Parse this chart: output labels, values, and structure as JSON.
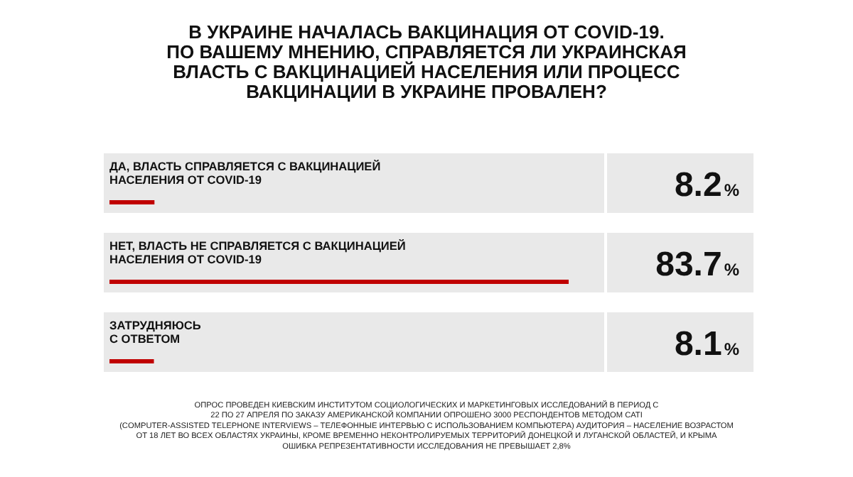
{
  "chart_data": {
    "type": "bar",
    "orientation": "horizontal",
    "title": "В УКРАИНЕ НАЧАЛАСЬ ВАКЦИНАЦИЯ ОТ COVID-19.\nПО ВАШЕМУ МНЕНИЮ, СПРАВЛЯЕТСЯ ЛИ УКРАИНСКАЯ\nВЛАСТЬ С ВАКЦИНАЦИЕЙ НАСЕЛЕНИЯ ИЛИ ПРОЦЕСС\nВАКЦИНАЦИИ В УКРАИНЕ ПРОВАЛЕН?",
    "categories": [
      "ДА, ВЛАСТЬ СПРАВЛЯЕТСЯ С ВАКЦИНАЦИЕЙ\nНАСЕЛЕНИЯ ОТ COVID-19",
      "НЕТ, ВЛАСТЬ НЕ СПРАВЛЯЕТСЯ С ВАКЦИНАЦИЕЙ\nНАСЕЛЕНИЯ ОТ COVID-19",
      "ЗАТРУДНЯЮСЬ\nС ОТВЕТОМ"
    ],
    "values": [
      8.2,
      83.7,
      8.1
    ],
    "value_labels": [
      "8.2%",
      "83.7%",
      "8.1%"
    ],
    "color": "#c00000",
    "annotations": [
      "ОПРОС ПРОВЕДЕН КИЕВСКИМ ИНСТИТУТОМ СОЦИОЛОГИЧЕСКИХ И МАРКЕТИНГОВЫХ ИССЛЕДОВАНИЙ В ПЕРИОД С",
      "22 ПО 27 АПРЕЛЯ ПО ЗАКАЗУ АМЕРИКАНСКОЙ КОМПАНИИ ОПРОШЕНО 3000 РЕСПОНДЕНТОВ МЕТОДОМ CATI",
      "(COMPUTER-ASSISTED TELEPHONE INTERVIEWS – ТЕЛЕФОННЫЕ ИНТЕРВЬЮ С ИСПОЛЬЗОВАНИЕМ КОМПЬЮТЕРА) АУДИТОРИЯ – НАСЕЛЕНИЕ ВОЗРАСТОМ",
      "ОТ 18 ЛЕТ ВО ВСЕХ ОБЛАСТЯХ УКРАИНЫ, КРОМЕ ВРЕМЕННО НЕКОНТРОЛИРУЕМЫХ ТЕРРИТОРИЙ ДОНЕЦКОЙ И ЛУГАНСКОЙ ОБЛАСТЕЙ, И КРЫМА",
      "ОШИБКА РЕПРЕЗЕНТАТИВНОСТИ ИССЛЕДОВАНИЯ НЕ ПРЕВЫШАЕТ 2,8%"
    ]
  }
}
